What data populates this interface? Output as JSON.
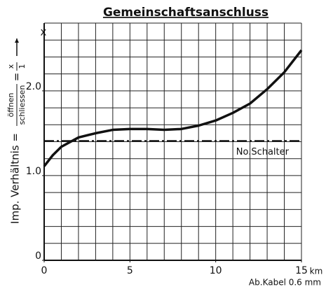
{
  "chart_data": {
    "type": "line",
    "title": "Gemeinschaftsanschluss",
    "y_label": {
      "prefix": "Imp. Verhältnis =",
      "numerator": "öffnen",
      "denominator": "schliessen",
      "equals": "=",
      "numerator2": "x",
      "denominator2": "1"
    },
    "y_unit": "x",
    "x_unit": "km",
    "x_label": "Ab.Kabel 0.6 mm",
    "x": [
      0,
      0.5,
      1,
      2,
      3,
      4,
      5,
      6,
      7,
      8,
      9,
      10,
      11,
      12,
      13,
      14,
      15
    ],
    "series": [
      {
        "name": "Imp. Verhältnis",
        "color": "#111111",
        "values": [
          1.11,
          1.24,
          1.34,
          1.45,
          1.5,
          1.54,
          1.55,
          1.55,
          1.54,
          1.55,
          1.59,
          1.65,
          1.74,
          1.85,
          2.02,
          2.22,
          2.48
        ]
      }
    ],
    "reference_line": {
      "label": "No.Schalter",
      "value": 1.41
    },
    "xlim": [
      0,
      15
    ],
    "ylim": [
      0,
      2.8
    ],
    "xticks": [
      0,
      5,
      10,
      15
    ],
    "yticks": [
      0,
      {
        "value": 1,
        "label": "1.0"
      },
      {
        "value": 2,
        "label": "2.0"
      }
    ],
    "x_gridlines": [
      0,
      1,
      2,
      3,
      4,
      5,
      6,
      7,
      8,
      9,
      10,
      11,
      12,
      13,
      14,
      15
    ],
    "y_gridlines": [
      0,
      0.2,
      0.4,
      0.6,
      0.8,
      1,
      1.2,
      1.4,
      1.6,
      1.8,
      2,
      2.2,
      2.4,
      2.6,
      2.8
    ],
    "grid": true
  }
}
